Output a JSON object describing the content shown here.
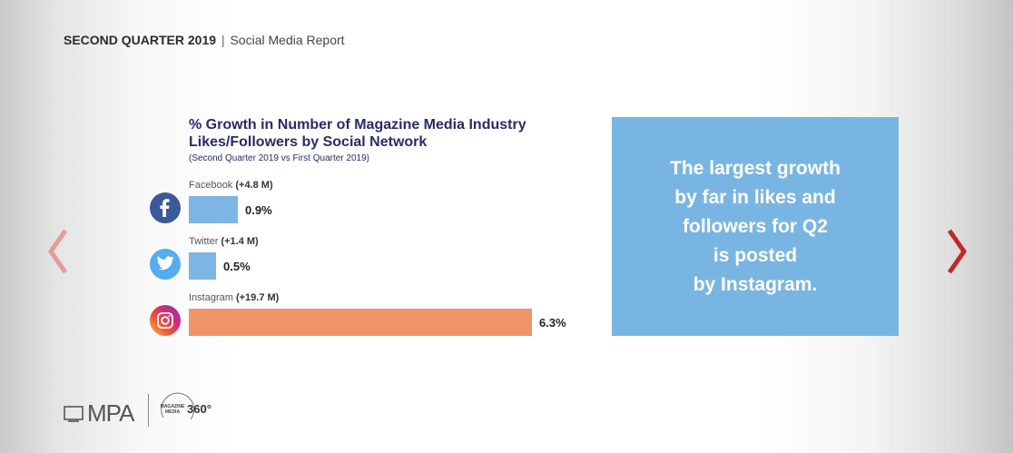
{
  "header": {
    "title_bold": "SECOND QUARTER 2019",
    "separator": "|",
    "title_rest": "Social Media Report"
  },
  "navigation": {
    "prev_icon": "chevron-left-icon",
    "next_icon": "chevron-right-icon",
    "prev_color": "#e89a9a",
    "next_color": "#c0282d"
  },
  "chart_data": {
    "type": "bar",
    "orientation": "horizontal",
    "title": "% Growth in Number of Magazine Media Industry Likes/Followers by Social Network",
    "subtitle": "(Second Quarter 2019 vs First Quarter 2019)",
    "xlabel": "",
    "ylabel": "",
    "xlim": [
      0,
      6.3
    ],
    "grid": false,
    "categories": [
      "Facebook",
      "Twitter",
      "Instagram"
    ],
    "category_notes": [
      "(+4.8 M)",
      "(+1.4 M)",
      "(+19.7 M)"
    ],
    "values": [
      0.9,
      0.5,
      6.3
    ],
    "value_labels": [
      "0.9%",
      "0.5%",
      "6.3%"
    ],
    "bar_colors": [
      "#7db5e3",
      "#7db5e3",
      "#f0946a"
    ],
    "icons": [
      "facebook-icon",
      "twitter-icon",
      "instagram-icon"
    ]
  },
  "callout": {
    "text": "The largest growth\nby far in likes and\nfollowers for Q2\nis posted\nby Instagram.",
    "background": "#79b5e2"
  },
  "footer": {
    "logo_text": "MPA",
    "badge_small": "MAGAZINE\nMEDIA",
    "badge_big": "360°"
  }
}
